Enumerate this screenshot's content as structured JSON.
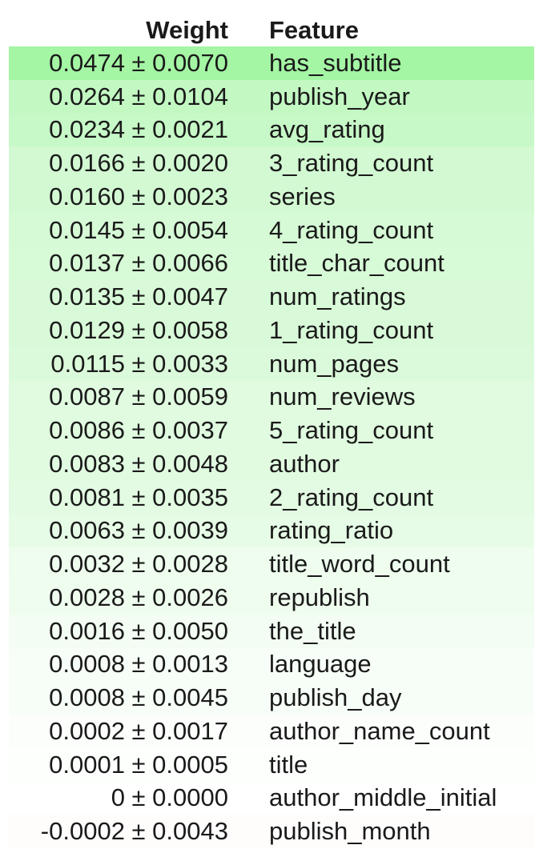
{
  "header": {
    "weight": "Weight",
    "feature": "Feature"
  },
  "rows": [
    {
      "weight": "0.0474 ± 0.0070",
      "feature": "has_subtitle",
      "bg": "#a4f5a4"
    },
    {
      "weight": "0.0264 ± 0.0104",
      "feature": "publish_year",
      "bg": "#c3f8c3"
    },
    {
      "weight": "0.0234 ± 0.0021",
      "feature": "avg_rating",
      "bg": "#c7f8c7"
    },
    {
      "weight": "0.0166 ± 0.0020",
      "feature": "3_rating_count",
      "bg": "#d2f9d2"
    },
    {
      "weight": "0.0160 ± 0.0023",
      "feature": "series",
      "bg": "#d3f9d3"
    },
    {
      "weight": "0.0145 ± 0.0054",
      "feature": "4_rating_count",
      "bg": "#d6faD6"
    },
    {
      "weight": "0.0137 ± 0.0066",
      "feature": "title_char_count",
      "bg": "#d7fad7"
    },
    {
      "weight": "0.0135 ± 0.0047",
      "feature": "num_ratings",
      "bg": "#d8fad8"
    },
    {
      "weight": "0.0129 ± 0.0058",
      "feature": "1_rating_count",
      "bg": "#d9fad9"
    },
    {
      "weight": "0.0115 ± 0.0033",
      "feature": "num_pages",
      "bg": "#dbfadb"
    },
    {
      "weight": "0.0087 ± 0.0059",
      "feature": "num_reviews",
      "bg": "#e0fbe0"
    },
    {
      "weight": "0.0086 ± 0.0037",
      "feature": "5_rating_count",
      "bg": "#e0fbe0"
    },
    {
      "weight": "0.0083 ± 0.0048",
      "feature": "author",
      "bg": "#e1fbe1"
    },
    {
      "weight": "0.0081 ± 0.0035",
      "feature": "2_rating_count",
      "bg": "#e2fbe2"
    },
    {
      "weight": "0.0063 ± 0.0039",
      "feature": "rating_ratio",
      "bg": "#e6fce6"
    },
    {
      "weight": "0.0032 ± 0.0028",
      "feature": "title_word_count",
      "bg": "#eefdee"
    },
    {
      "weight": "0.0028 ± 0.0026",
      "feature": "republish",
      "bg": "#effdef"
    },
    {
      "weight": "0.0016 ± 0.0050",
      "feature": "the_title",
      "bg": "#f3fdf3"
    },
    {
      "weight": "0.0008 ± 0.0013",
      "feature": "language",
      "bg": "#f7fef7"
    },
    {
      "weight": "0.0008 ± 0.0045",
      "feature": "publish_day",
      "bg": "#f7fef7"
    },
    {
      "weight": "0.0002 ± 0.0017",
      "feature": "author_name_count",
      "bg": "#fcfefc"
    },
    {
      "weight": "0.0001 ± 0.0005",
      "feature": "title",
      "bg": "#fdfffd"
    },
    {
      "weight": "0 ± 0.0000",
      "feature": "author_middle_initial",
      "bg": "#ffffff"
    },
    {
      "weight": "-0.0002 ± 0.0043",
      "feature": "publish_month",
      "bg": "#fffcfc"
    }
  ]
}
